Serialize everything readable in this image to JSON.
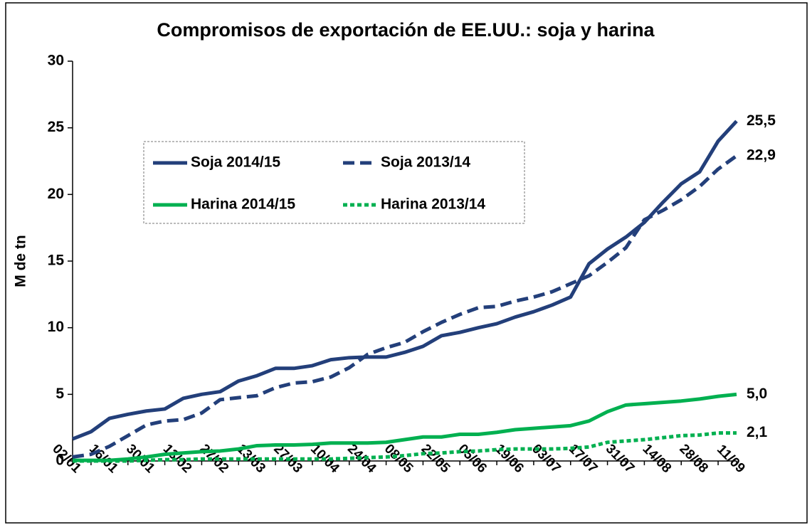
{
  "chart_data": {
    "type": "line",
    "title": "Compromisos de exportación de EE.UU.: soja y harina",
    "y_label": "M de tn",
    "categories": [
      "02/01",
      null,
      "16/01",
      null,
      "30/01",
      null,
      "13/02",
      null,
      "27/02",
      null,
      "13/03",
      null,
      "27/03",
      null,
      "10/04",
      null,
      "24/04",
      null,
      "08/05",
      null,
      "22/05",
      null,
      "05/06",
      null,
      "19/06",
      null,
      "03/07",
      null,
      "17/07",
      null,
      "31/07",
      null,
      "14/08",
      null,
      "28/08",
      null,
      "11/09"
    ],
    "ylim": [
      0,
      30
    ],
    "yticks": [
      0,
      5,
      10,
      15,
      20,
      25,
      30
    ],
    "grid": false,
    "series": [
      {
        "name": "Soja 2014/15",
        "color": "#233f7a",
        "dash": "solid",
        "values": [
          1.65,
          2.2,
          3.2,
          3.5,
          3.75,
          3.9,
          4.7,
          5.0,
          5.2,
          6.0,
          6.4,
          6.95,
          6.95,
          7.15,
          7.6,
          7.75,
          7.8,
          7.8,
          8.15,
          8.6,
          9.4,
          9.65,
          10.0,
          10.3,
          10.8,
          11.2,
          11.7,
          12.3,
          14.8,
          15.9,
          16.8,
          17.9,
          19.4,
          20.8,
          21.7,
          24.0,
          25.5
        ],
        "value_labels": [
          null,
          null,
          null,
          null,
          null,
          null,
          null,
          null,
          null,
          null,
          null,
          null,
          null,
          null,
          null,
          null,
          null,
          null,
          null,
          null,
          null,
          null,
          null,
          null,
          null,
          null,
          null,
          null,
          null,
          null,
          null,
          null,
          null,
          null,
          null,
          null,
          "25,5"
        ]
      },
      {
        "name": "Soja 2013/14",
        "color": "#233f7a",
        "dash": "dashed",
        "values": [
          0.3,
          0.5,
          1.1,
          1.9,
          2.7,
          3.0,
          3.1,
          3.6,
          4.6,
          4.75,
          4.9,
          5.5,
          5.85,
          5.95,
          6.3,
          7.0,
          8.0,
          8.5,
          8.9,
          9.7,
          10.4,
          11.0,
          11.5,
          11.6,
          12.0,
          12.3,
          12.7,
          13.3,
          13.9,
          14.9,
          16.0,
          18.1,
          18.8,
          19.6,
          20.6,
          21.9,
          22.9
        ],
        "value_labels": [
          null,
          null,
          null,
          null,
          null,
          null,
          null,
          null,
          null,
          null,
          null,
          null,
          null,
          null,
          null,
          null,
          null,
          null,
          null,
          null,
          null,
          null,
          null,
          null,
          null,
          null,
          null,
          null,
          null,
          null,
          null,
          null,
          null,
          null,
          null,
          null,
          "22,9"
        ]
      },
      {
        "name": "Harina 2014/15",
        "color": "#00b050",
        "dash": "solid",
        "values": [
          0.05,
          0.05,
          0.05,
          0.15,
          0.3,
          0.5,
          0.6,
          0.7,
          0.75,
          0.9,
          1.15,
          1.2,
          1.2,
          1.25,
          1.35,
          1.35,
          1.35,
          1.4,
          1.6,
          1.8,
          1.8,
          2.0,
          2.0,
          2.15,
          2.35,
          2.45,
          2.55,
          2.65,
          3.0,
          3.7,
          4.2,
          4.3,
          4.4,
          4.5,
          4.65,
          4.85,
          5.0
        ],
        "value_labels": [
          null,
          null,
          null,
          null,
          null,
          null,
          null,
          null,
          null,
          null,
          null,
          null,
          null,
          null,
          null,
          null,
          null,
          null,
          null,
          null,
          null,
          null,
          null,
          null,
          null,
          null,
          null,
          null,
          null,
          null,
          null,
          null,
          null,
          null,
          null,
          null,
          "5,0"
        ]
      },
      {
        "name": "Harina 2013/14",
        "color": "#00b050",
        "dash": "dotted",
        "values": [
          0,
          0,
          0,
          0,
          0.05,
          0.1,
          0.1,
          0.15,
          0.15,
          0.15,
          0.15,
          0.15,
          0.15,
          0.15,
          0.15,
          0.2,
          0.25,
          0.3,
          0.4,
          0.55,
          0.6,
          0.7,
          0.75,
          0.85,
          0.9,
          0.9,
          0.9,
          0.95,
          1.05,
          1.4,
          1.5,
          1.6,
          1.75,
          1.9,
          1.95,
          2.1,
          2.1
        ],
        "value_labels": [
          null,
          null,
          null,
          null,
          null,
          null,
          null,
          null,
          null,
          null,
          null,
          null,
          null,
          null,
          null,
          null,
          null,
          null,
          null,
          null,
          null,
          null,
          null,
          null,
          null,
          null,
          null,
          null,
          null,
          null,
          null,
          null,
          null,
          null,
          null,
          null,
          "2,1"
        ]
      }
    ]
  }
}
